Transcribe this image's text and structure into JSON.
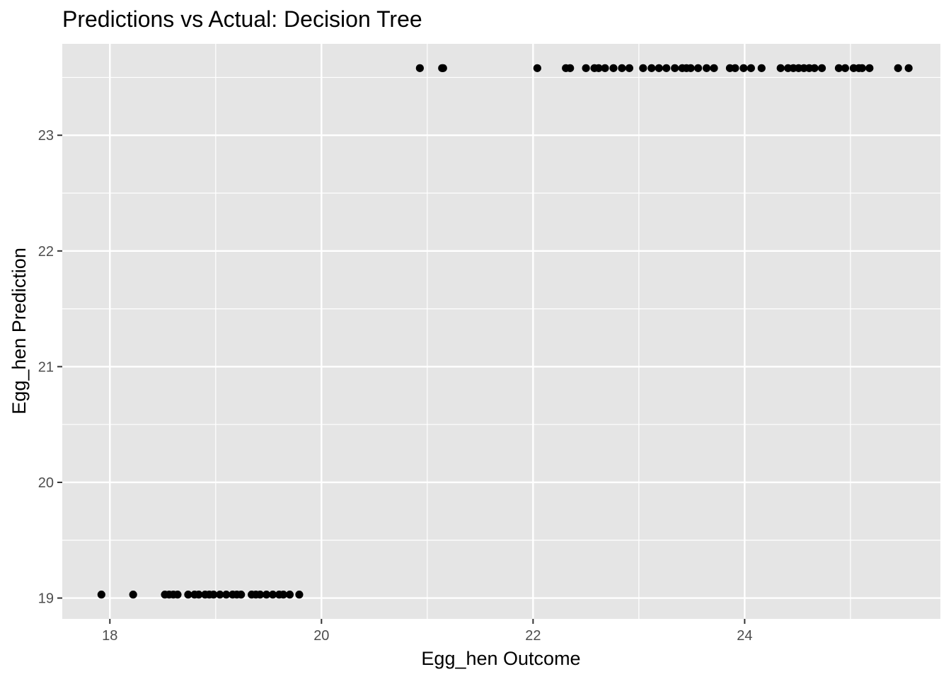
{
  "chart_data": {
    "type": "scatter",
    "title": "Predictions vs Actual: Decision Tree",
    "xlabel": "Egg_hen Outcome",
    "ylabel": "Egg_hen Prediction",
    "xlim": [
      17.55,
      25.85
    ],
    "ylim": [
      18.82,
      23.79
    ],
    "x_ticks": [
      18,
      20,
      22,
      24
    ],
    "y_ticks": [
      19,
      20,
      21,
      22,
      23
    ],
    "grid": true,
    "panel_background": "#e5e5e5",
    "grid_color": "#ffffff",
    "point_color": "#000000",
    "series": [
      {
        "points": [
          {
            "x": 17.92,
            "y": 19.03
          },
          {
            "x": 18.22,
            "y": 19.03
          },
          {
            "x": 18.52,
            "y": 19.03
          },
          {
            "x": 18.56,
            "y": 19.03
          },
          {
            "x": 18.6,
            "y": 19.03
          },
          {
            "x": 18.64,
            "y": 19.03
          },
          {
            "x": 18.74,
            "y": 19.03
          },
          {
            "x": 18.8,
            "y": 19.03
          },
          {
            "x": 18.84,
            "y": 19.03
          },
          {
            "x": 18.9,
            "y": 19.03
          },
          {
            "x": 18.94,
            "y": 19.03
          },
          {
            "x": 18.98,
            "y": 19.03
          },
          {
            "x": 19.04,
            "y": 19.03
          },
          {
            "x": 19.1,
            "y": 19.03
          },
          {
            "x": 19.16,
            "y": 19.03
          },
          {
            "x": 19.2,
            "y": 19.03
          },
          {
            "x": 19.24,
            "y": 19.03
          },
          {
            "x": 19.34,
            "y": 19.03
          },
          {
            "x": 19.38,
            "y": 19.03
          },
          {
            "x": 19.42,
            "y": 19.03
          },
          {
            "x": 19.48,
            "y": 19.03
          },
          {
            "x": 19.54,
            "y": 19.03
          },
          {
            "x": 19.6,
            "y": 19.03
          },
          {
            "x": 19.64,
            "y": 19.03
          },
          {
            "x": 19.7,
            "y": 19.03
          },
          {
            "x": 19.79,
            "y": 19.03
          },
          {
            "x": 20.93,
            "y": 23.58
          },
          {
            "x": 21.14,
            "y": 23.58
          },
          {
            "x": 21.15,
            "y": 23.58
          },
          {
            "x": 22.04,
            "y": 23.58
          },
          {
            "x": 22.31,
            "y": 23.58
          },
          {
            "x": 22.35,
            "y": 23.58
          },
          {
            "x": 22.5,
            "y": 23.58
          },
          {
            "x": 22.58,
            "y": 23.58
          },
          {
            "x": 22.62,
            "y": 23.58
          },
          {
            "x": 22.68,
            "y": 23.58
          },
          {
            "x": 22.76,
            "y": 23.58
          },
          {
            "x": 22.84,
            "y": 23.58
          },
          {
            "x": 22.91,
            "y": 23.58
          },
          {
            "x": 23.04,
            "y": 23.58
          },
          {
            "x": 23.12,
            "y": 23.58
          },
          {
            "x": 23.19,
            "y": 23.58
          },
          {
            "x": 23.26,
            "y": 23.58
          },
          {
            "x": 23.34,
            "y": 23.58
          },
          {
            "x": 23.41,
            "y": 23.58
          },
          {
            "x": 23.45,
            "y": 23.58
          },
          {
            "x": 23.49,
            "y": 23.58
          },
          {
            "x": 23.56,
            "y": 23.58
          },
          {
            "x": 23.64,
            "y": 23.58
          },
          {
            "x": 23.71,
            "y": 23.58
          },
          {
            "x": 23.86,
            "y": 23.58
          },
          {
            "x": 23.91,
            "y": 23.58
          },
          {
            "x": 23.99,
            "y": 23.58
          },
          {
            "x": 24.06,
            "y": 23.58
          },
          {
            "x": 24.16,
            "y": 23.58
          },
          {
            "x": 24.34,
            "y": 23.58
          },
          {
            "x": 24.41,
            "y": 23.58
          },
          {
            "x": 24.46,
            "y": 23.58
          },
          {
            "x": 24.51,
            "y": 23.58
          },
          {
            "x": 24.56,
            "y": 23.58
          },
          {
            "x": 24.61,
            "y": 23.58
          },
          {
            "x": 24.66,
            "y": 23.58
          },
          {
            "x": 24.73,
            "y": 23.58
          },
          {
            "x": 24.89,
            "y": 23.58
          },
          {
            "x": 24.95,
            "y": 23.58
          },
          {
            "x": 25.03,
            "y": 23.58
          },
          {
            "x": 25.08,
            "y": 23.58
          },
          {
            "x": 25.11,
            "y": 23.58
          },
          {
            "x": 25.18,
            "y": 23.58
          },
          {
            "x": 25.45,
            "y": 23.58
          },
          {
            "x": 25.55,
            "y": 23.58
          }
        ]
      }
    ]
  }
}
